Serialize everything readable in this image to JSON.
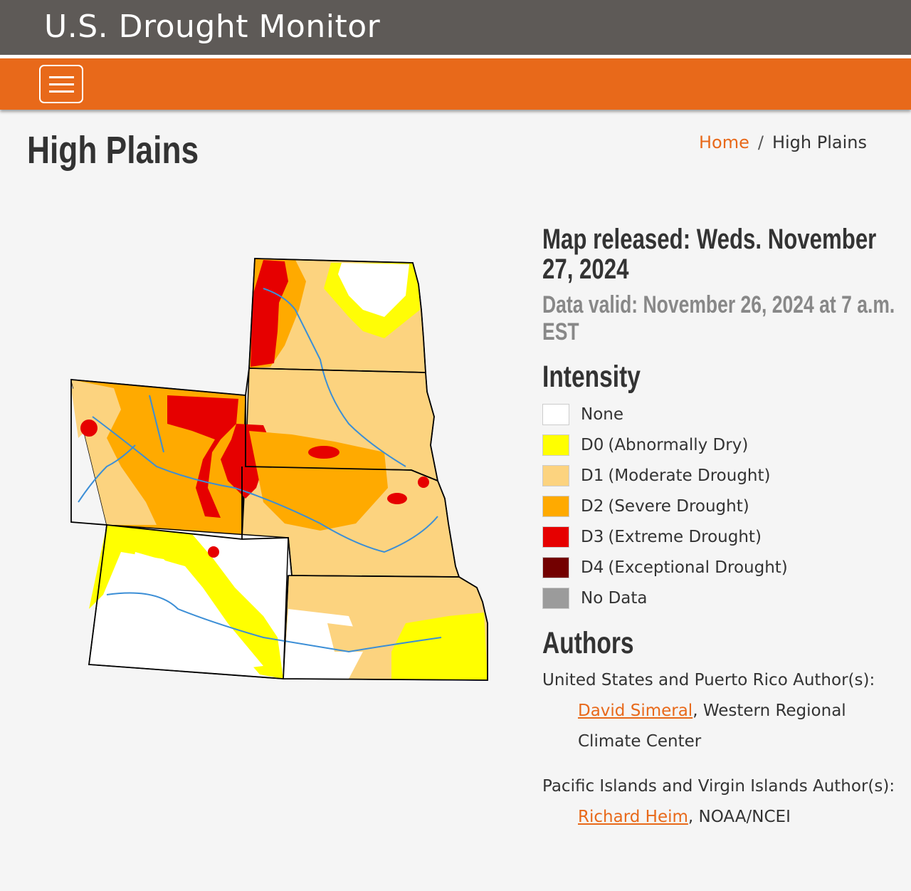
{
  "site": {
    "title": "U.S. Drought Monitor"
  },
  "page": {
    "title": "High Plains"
  },
  "breadcrumb": {
    "home": "Home",
    "current": "High Plains"
  },
  "map_info": {
    "released": "Map released: Weds. November 27, 2024",
    "valid": "Data valid: November 26, 2024 at 7 a.m. EST"
  },
  "legend": {
    "heading": "Intensity",
    "items": [
      {
        "code": "None",
        "desc": "",
        "color": "#ffffff"
      },
      {
        "code": "D0",
        "desc": "(Abnormally Dry)",
        "color": "#ffff00"
      },
      {
        "code": "D1",
        "desc": "(Moderate Drought)",
        "color": "#fcd37f"
      },
      {
        "code": "D2",
        "desc": "(Severe Drought)",
        "color": "#ffaa00"
      },
      {
        "code": "D3",
        "desc": "(Extreme Drought)",
        "color": "#e60000"
      },
      {
        "code": "D4",
        "desc": "(Exceptional Drought)",
        "color": "#730000"
      },
      {
        "code": "No Data",
        "desc": "",
        "color": "#9b9b9b"
      }
    ]
  },
  "authors": {
    "heading": "Authors",
    "us_label": "United States and Puerto Rico Author(s):",
    "us_author_name": "David Simeral",
    "us_author_org": ", Western Regional Climate Center",
    "pi_label": "Pacific Islands and Virgin Islands Author(s):",
    "pi_author_name": "Richard Heim",
    "pi_author_org": ", NOAA/NCEI"
  },
  "colors": {
    "accent": "#e8691a",
    "header": "#5e5a57"
  }
}
